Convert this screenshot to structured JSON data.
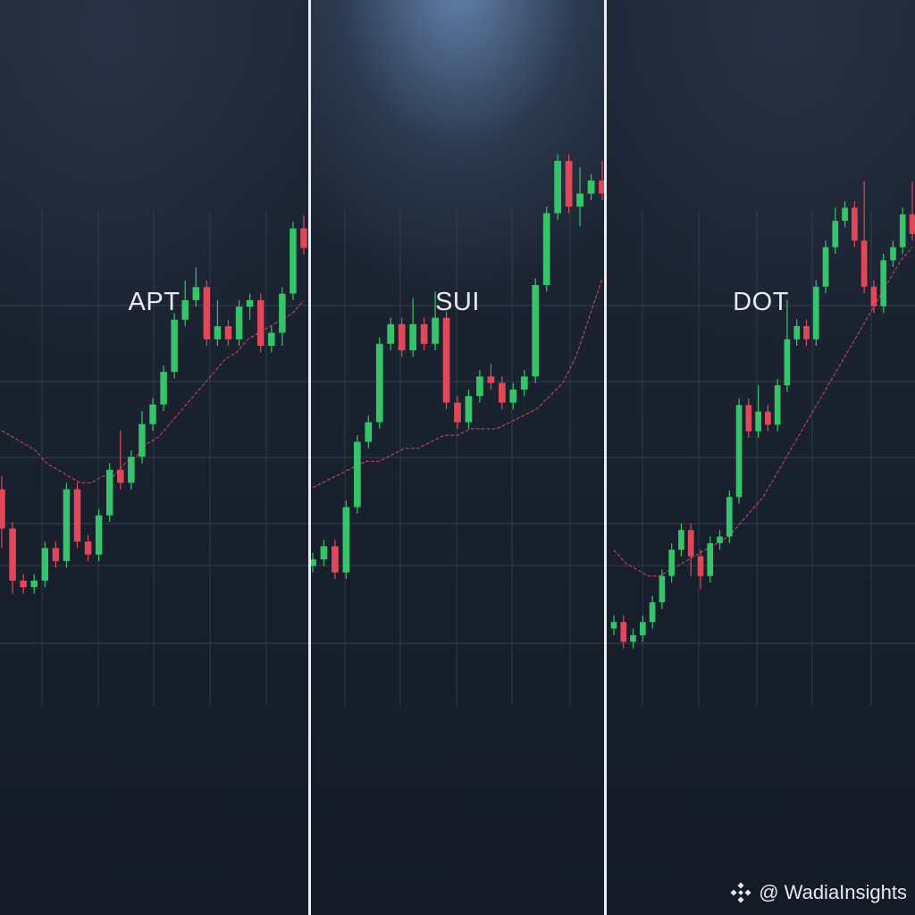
{
  "colors": {
    "up": "#36c46a",
    "down": "#e0485a",
    "moving_average": "#c44858",
    "grid": "#3a4556",
    "divider": "#e9edf2",
    "text": "#e8ecf1"
  },
  "watermark": {
    "icon": "binance-logo-icon",
    "text": "@ WadiaInsights"
  },
  "chart_data": [
    {
      "type": "candlestick",
      "title": "APT",
      "up_color": "#36c46a",
      "down_color": "#e0485a",
      "ylim": [
        0,
        100
      ],
      "grid": true,
      "moving_average": [
        47,
        46,
        45,
        44,
        42,
        41,
        40,
        39,
        39,
        40,
        40,
        42,
        43,
        45,
        46,
        48,
        50,
        52,
        54,
        56,
        58,
        59,
        61,
        62,
        63,
        64,
        65,
        67
      ],
      "candles": [
        {
          "open": 38,
          "close": 32,
          "high": 40,
          "low": 29
        },
        {
          "open": 32,
          "close": 24,
          "high": 33,
          "low": 22
        },
        {
          "open": 24,
          "close": 23,
          "high": 25,
          "low": 22
        },
        {
          "open": 23,
          "close": 24,
          "high": 25,
          "low": 22
        },
        {
          "open": 24,
          "close": 29,
          "high": 30,
          "low": 23
        },
        {
          "open": 29,
          "close": 27,
          "high": 30,
          "low": 26
        },
        {
          "open": 27,
          "close": 38,
          "high": 39,
          "low": 26
        },
        {
          "open": 38,
          "close": 30,
          "high": 39,
          "low": 29
        },
        {
          "open": 30,
          "close": 28,
          "high": 31,
          "low": 27
        },
        {
          "open": 28,
          "close": 34,
          "high": 35,
          "low": 27
        },
        {
          "open": 34,
          "close": 41,
          "high": 42,
          "low": 33
        },
        {
          "open": 41,
          "close": 39,
          "high": 47,
          "low": 38
        },
        {
          "open": 39,
          "close": 43,
          "high": 44,
          "low": 38
        },
        {
          "open": 43,
          "close": 48,
          "high": 50,
          "low": 42
        },
        {
          "open": 48,
          "close": 51,
          "high": 52,
          "low": 47
        },
        {
          "open": 51,
          "close": 56,
          "high": 57,
          "low": 50
        },
        {
          "open": 56,
          "close": 64,
          "high": 65,
          "low": 55
        },
        {
          "open": 64,
          "close": 67,
          "high": 70,
          "low": 63
        },
        {
          "open": 67,
          "close": 69,
          "high": 72,
          "low": 66
        },
        {
          "open": 69,
          "close": 61,
          "high": 70,
          "low": 60
        },
        {
          "open": 61,
          "close": 63,
          "high": 67,
          "low": 60
        },
        {
          "open": 63,
          "close": 61,
          "high": 64,
          "low": 60
        },
        {
          "open": 61,
          "close": 66,
          "high": 67,
          "low": 60
        },
        {
          "open": 66,
          "close": 67,
          "high": 68,
          "low": 64
        },
        {
          "open": 67,
          "close": 60,
          "high": 68,
          "low": 59
        },
        {
          "open": 60,
          "close": 62,
          "high": 63,
          "low": 59
        },
        {
          "open": 62,
          "close": 68,
          "high": 69,
          "low": 60
        },
        {
          "open": 68,
          "close": 78,
          "high": 79,
          "low": 67
        },
        {
          "open": 78,
          "close": 75,
          "high": 80,
          "low": 74
        }
      ]
    },
    {
      "type": "candlestick",
      "title": "SUI",
      "up_color": "#36c46a",
      "down_color": "#e0485a",
      "ylim": [
        0,
        100
      ],
      "grid": true,
      "moving_average": [
        40,
        41,
        42,
        43,
        44,
        44,
        45,
        46,
        46,
        47,
        48,
        48,
        49,
        49,
        49,
        50,
        51,
        52,
        54,
        56,
        60,
        66,
        72
      ],
      "candles": [
        {
          "open": 28,
          "close": 29,
          "high": 30,
          "low": 27
        },
        {
          "open": 29,
          "close": 31,
          "high": 32,
          "low": 28
        },
        {
          "open": 31,
          "close": 27,
          "high": 32,
          "low": 26
        },
        {
          "open": 27,
          "close": 37,
          "high": 38,
          "low": 26
        },
        {
          "open": 37,
          "close": 47,
          "high": 48,
          "low": 36
        },
        {
          "open": 47,
          "close": 50,
          "high": 51,
          "low": 46
        },
        {
          "open": 50,
          "close": 62,
          "high": 63,
          "low": 49
        },
        {
          "open": 62,
          "close": 65,
          "high": 66,
          "low": 61
        },
        {
          "open": 65,
          "close": 61,
          "high": 66,
          "low": 60
        },
        {
          "open": 61,
          "close": 65,
          "high": 69,
          "low": 60
        },
        {
          "open": 65,
          "close": 62,
          "high": 66,
          "low": 61
        },
        {
          "open": 62,
          "close": 66,
          "high": 70,
          "low": 61
        },
        {
          "open": 66,
          "close": 53,
          "high": 67,
          "low": 52
        },
        {
          "open": 53,
          "close": 50,
          "high": 54,
          "low": 49
        },
        {
          "open": 50,
          "close": 54,
          "high": 55,
          "low": 49
        },
        {
          "open": 54,
          "close": 57,
          "high": 58,
          "low": 53
        },
        {
          "open": 57,
          "close": 56,
          "high": 59,
          "low": 55
        },
        {
          "open": 56,
          "close": 53,
          "high": 57,
          "low": 52
        },
        {
          "open": 53,
          "close": 55,
          "high": 56,
          "low": 52
        },
        {
          "open": 55,
          "close": 57,
          "high": 58,
          "low": 54
        },
        {
          "open": 57,
          "close": 71,
          "high": 72,
          "low": 56
        },
        {
          "open": 71,
          "close": 82,
          "high": 83,
          "low": 70
        },
        {
          "open": 82,
          "close": 90,
          "high": 91,
          "low": 81
        },
        {
          "open": 90,
          "close": 83,
          "high": 91,
          "low": 82
        },
        {
          "open": 83,
          "close": 85,
          "high": 89,
          "low": 80
        },
        {
          "open": 85,
          "close": 87,
          "high": 88,
          "low": 84
        },
        {
          "open": 87,
          "close": 85,
          "high": 90,
          "low": 84
        }
      ]
    },
    {
      "type": "candlestick",
      "title": "DOT",
      "up_color": "#36c46a",
      "down_color": "#e0485a",
      "ylim": [
        0,
        100
      ],
      "grid": true,
      "moving_average": [
        30,
        28,
        27,
        26,
        26,
        27,
        28,
        29,
        30,
        31,
        32,
        34,
        36,
        38,
        41,
        44,
        47,
        50,
        53,
        56,
        59,
        62,
        65,
        68,
        71,
        74,
        76
      ],
      "candles": [
        {
          "open": 18,
          "close": 19,
          "high": 20,
          "low": 17
        },
        {
          "open": 19,
          "close": 16,
          "high": 20,
          "low": 15
        },
        {
          "open": 16,
          "close": 17,
          "high": 18,
          "low": 15
        },
        {
          "open": 17,
          "close": 19,
          "high": 20,
          "low": 16
        },
        {
          "open": 19,
          "close": 22,
          "high": 23,
          "low": 18
        },
        {
          "open": 22,
          "close": 26,
          "high": 27,
          "low": 21
        },
        {
          "open": 26,
          "close": 30,
          "high": 31,
          "low": 25
        },
        {
          "open": 30,
          "close": 33,
          "high": 34,
          "low": 29
        },
        {
          "open": 33,
          "close": 29,
          "high": 34,
          "low": 26
        },
        {
          "open": 29,
          "close": 26,
          "high": 30,
          "low": 24
        },
        {
          "open": 26,
          "close": 31,
          "high": 32,
          "low": 25
        },
        {
          "open": 31,
          "close": 32,
          "high": 33,
          "low": 30
        },
        {
          "open": 32,
          "close": 38,
          "high": 39,
          "low": 31
        },
        {
          "open": 38,
          "close": 52,
          "high": 53,
          "low": 37
        },
        {
          "open": 52,
          "close": 48,
          "high": 53,
          "low": 47
        },
        {
          "open": 48,
          "close": 51,
          "high": 55,
          "low": 47
        },
        {
          "open": 51,
          "close": 49,
          "high": 52,
          "low": 48
        },
        {
          "open": 49,
          "close": 55,
          "high": 56,
          "low": 48
        },
        {
          "open": 55,
          "close": 62,
          "high": 68,
          "low": 54
        },
        {
          "open": 62,
          "close": 64,
          "high": 65,
          "low": 61
        },
        {
          "open": 64,
          "close": 62,
          "high": 65,
          "low": 61
        },
        {
          "open": 62,
          "close": 70,
          "high": 71,
          "low": 61
        },
        {
          "open": 70,
          "close": 76,
          "high": 77,
          "low": 69
        },
        {
          "open": 76,
          "close": 80,
          "high": 82,
          "low": 75
        },
        {
          "open": 80,
          "close": 82,
          "high": 83,
          "low": 79
        },
        {
          "open": 82,
          "close": 77,
          "high": 83,
          "low": 76
        },
        {
          "open": 77,
          "close": 70,
          "high": 86,
          "low": 69
        },
        {
          "open": 70,
          "close": 67,
          "high": 71,
          "low": 66
        },
        {
          "open": 67,
          "close": 74,
          "high": 75,
          "low": 66
        },
        {
          "open": 74,
          "close": 76,
          "high": 77,
          "low": 73
        },
        {
          "open": 76,
          "close": 81,
          "high": 82,
          "low": 75
        },
        {
          "open": 81,
          "close": 78,
          "high": 86,
          "low": 77
        }
      ]
    }
  ]
}
